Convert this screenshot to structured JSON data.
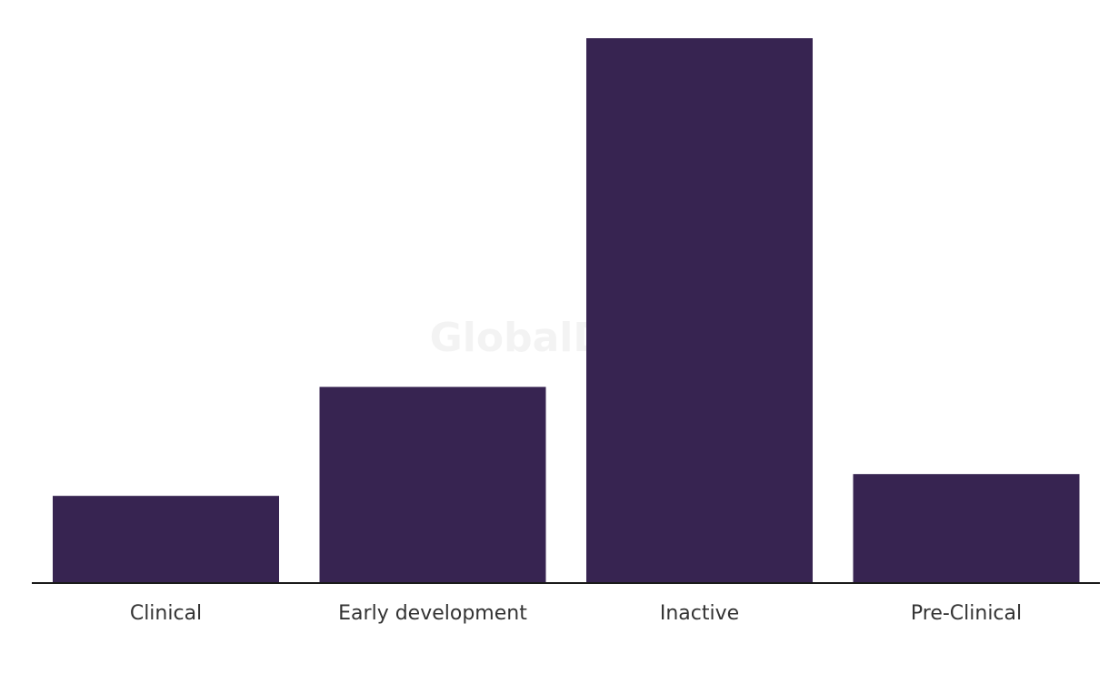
{
  "watermark": "GlobalData",
  "chart_data": {
    "type": "bar",
    "categories": [
      "Clinical",
      "Early development",
      "Inactive",
      "Pre-Clinical"
    ],
    "values": [
      4,
      9,
      25,
      5
    ],
    "ylim": [
      0,
      25
    ],
    "grid": false,
    "legend": "none",
    "colors": {
      "bar": "#372451",
      "axis": "#1a1a1a",
      "label": "#333333",
      "watermark": "#f3f3f3"
    }
  }
}
